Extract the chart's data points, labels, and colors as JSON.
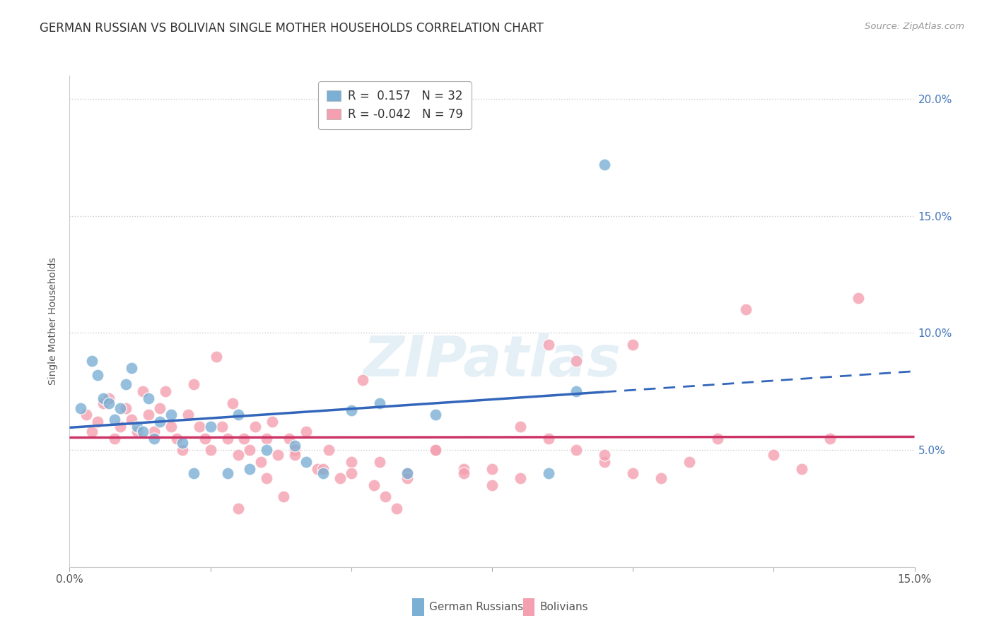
{
  "title": "GERMAN RUSSIAN VS BOLIVIAN SINGLE MOTHER HOUSEHOLDS CORRELATION CHART",
  "source": "Source: ZipAtlas.com",
  "ylabel": "Single Mother Households",
  "xlim": [
    0.0,
    0.15
  ],
  "ylim": [
    0.0,
    0.21
  ],
  "yticks": [
    0.05,
    0.1,
    0.15,
    0.2
  ],
  "ytick_labels": [
    "5.0%",
    "10.0%",
    "15.0%",
    "20.0%"
  ],
  "xticks": [
    0.0,
    0.025,
    0.05,
    0.075,
    0.1,
    0.125,
    0.15
  ],
  "xtick_labels": [
    "0.0%",
    "",
    "",
    "",
    "",
    "",
    "15.0%"
  ],
  "german_russian_color": "#7bafd4",
  "bolivian_color": "#f4a0b0",
  "line_blue": "#3366bb",
  "line_pink": "#cc3366",
  "german_russian_label": "German Russians",
  "bolivian_label": "Bolivians",
  "R_german": 0.157,
  "N_german": 32,
  "R_bolivian": -0.042,
  "N_bolivian": 79,
  "watermark": "ZIPatlas",
  "background_color": "#ffffff",
  "grid_color": "#cccccc",
  "title_fontsize": 12,
  "axis_label_fontsize": 10,
  "tick_fontsize": 11,
  "legend_fontsize": 12,
  "tick_color": "#4477bb",
  "german_russian_scatter": {
    "x": [
      0.002,
      0.004,
      0.005,
      0.006,
      0.007,
      0.008,
      0.009,
      0.01,
      0.011,
      0.012,
      0.013,
      0.014,
      0.015,
      0.016,
      0.018,
      0.02,
      0.022,
      0.025,
      0.028,
      0.03,
      0.032,
      0.035,
      0.04,
      0.042,
      0.045,
      0.05,
      0.055,
      0.06,
      0.065,
      0.085,
      0.09,
      0.095
    ],
    "y": [
      0.068,
      0.088,
      0.082,
      0.072,
      0.07,
      0.063,
      0.068,
      0.078,
      0.085,
      0.06,
      0.058,
      0.072,
      0.055,
      0.062,
      0.065,
      0.053,
      0.04,
      0.06,
      0.04,
      0.065,
      0.042,
      0.05,
      0.052,
      0.045,
      0.04,
      0.067,
      0.07,
      0.04,
      0.065,
      0.04,
      0.075,
      0.172
    ]
  },
  "bolivian_scatter": {
    "x": [
      0.003,
      0.004,
      0.005,
      0.006,
      0.007,
      0.008,
      0.009,
      0.01,
      0.011,
      0.012,
      0.013,
      0.014,
      0.015,
      0.016,
      0.017,
      0.018,
      0.019,
      0.02,
      0.021,
      0.022,
      0.023,
      0.024,
      0.025,
      0.026,
      0.027,
      0.028,
      0.029,
      0.03,
      0.031,
      0.032,
      0.033,
      0.034,
      0.035,
      0.036,
      0.037,
      0.038,
      0.039,
      0.04,
      0.042,
      0.044,
      0.046,
      0.048,
      0.05,
      0.052,
      0.054,
      0.056,
      0.058,
      0.06,
      0.065,
      0.07,
      0.075,
      0.08,
      0.085,
      0.09,
      0.095,
      0.1,
      0.105,
      0.11,
      0.115,
      0.12,
      0.125,
      0.13,
      0.135,
      0.14,
      0.1,
      0.095,
      0.09,
      0.085,
      0.08,
      0.075,
      0.07,
      0.065,
      0.06,
      0.055,
      0.05,
      0.045,
      0.04,
      0.035,
      0.03
    ],
    "y": [
      0.065,
      0.058,
      0.062,
      0.07,
      0.072,
      0.055,
      0.06,
      0.068,
      0.063,
      0.058,
      0.075,
      0.065,
      0.058,
      0.068,
      0.075,
      0.06,
      0.055,
      0.05,
      0.065,
      0.078,
      0.06,
      0.055,
      0.05,
      0.09,
      0.06,
      0.055,
      0.07,
      0.048,
      0.055,
      0.05,
      0.06,
      0.045,
      0.038,
      0.062,
      0.048,
      0.03,
      0.055,
      0.05,
      0.058,
      0.042,
      0.05,
      0.038,
      0.045,
      0.08,
      0.035,
      0.03,
      0.025,
      0.04,
      0.05,
      0.042,
      0.035,
      0.06,
      0.055,
      0.05,
      0.045,
      0.04,
      0.038,
      0.045,
      0.055,
      0.11,
      0.048,
      0.042,
      0.055,
      0.115,
      0.095,
      0.048,
      0.088,
      0.095,
      0.038,
      0.042,
      0.04,
      0.05,
      0.038,
      0.045,
      0.04,
      0.042,
      0.048,
      0.055,
      0.025
    ]
  }
}
